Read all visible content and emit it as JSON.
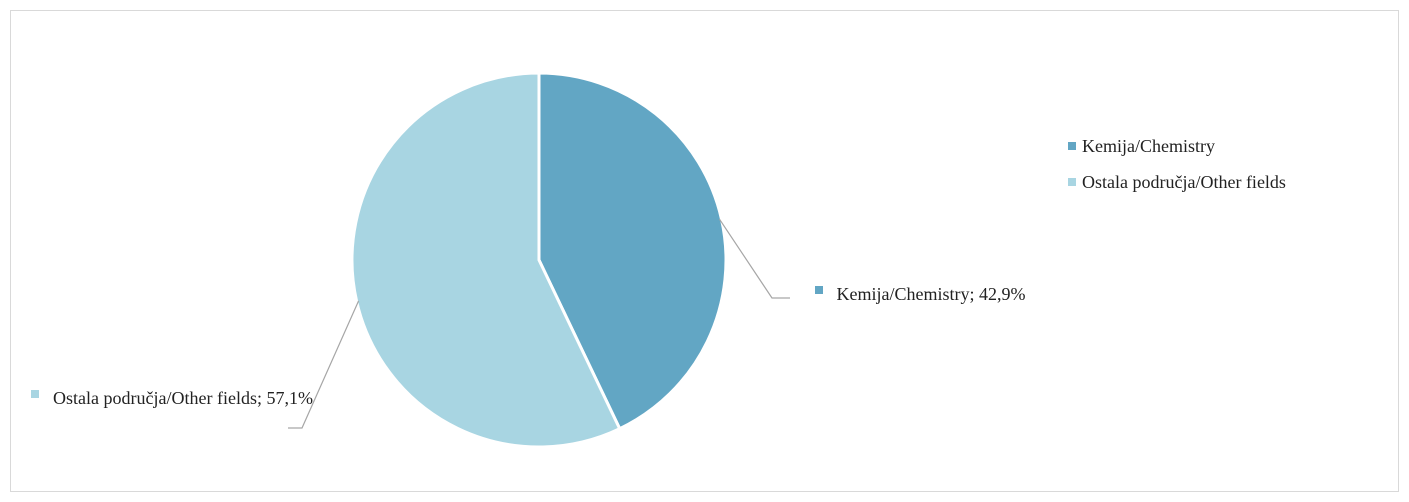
{
  "chart_data": {
    "type": "pie",
    "categories": [
      "Kemija/Chemistry",
      "Ostala područja/Other fields"
    ],
    "values": [
      42.9,
      57.1
    ],
    "value_labels": [
      "Kemija/Chemistry; 42,9%",
      "Ostala područja/Other fields; 57,1%"
    ],
    "colors": [
      "#62a6c4",
      "#a8d5e2"
    ],
    "legend": "right"
  }
}
